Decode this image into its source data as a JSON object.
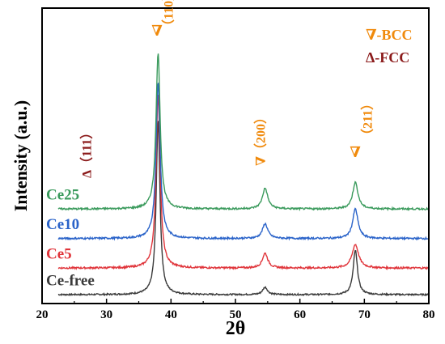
{
  "chart_data": {
    "type": "line",
    "title": "",
    "xlabel": "2θ",
    "ylabel": "Intensity (a.u.)",
    "xlim": [
      20,
      80
    ],
    "xticks": [
      20,
      30,
      40,
      50,
      60,
      70,
      80
    ],
    "ylim": [
      0,
      100
    ],
    "yticks_shown": false,
    "grid": false,
    "legend": {
      "placement": "top-right",
      "entries": [
        {
          "label": "∇-BCC",
          "color": "#f08a0c"
        },
        {
          "label": "Δ-FCC",
          "color": "#8b1a1a"
        }
      ]
    },
    "series": [
      {
        "name": "Ce-free",
        "color": "#3a3a3a",
        "baseline": 3,
        "noise": 0.25,
        "peaks": [
          {
            "x": 38.0,
            "height": 59,
            "width": 0.35
          },
          {
            "x": 54.6,
            "height": 2.5,
            "width": 0.45
          },
          {
            "x": 68.6,
            "height": 15,
            "width": 0.4
          }
        ]
      },
      {
        "name": "Ce5",
        "color": "#e0353b",
        "baseline": 12,
        "noise": 0.3,
        "peaks": [
          {
            "x": 38.0,
            "height": 59,
            "width": 0.38
          },
          {
            "x": 54.6,
            "height": 5,
            "width": 0.5
          },
          {
            "x": 68.6,
            "height": 8,
            "width": 0.6
          }
        ]
      },
      {
        "name": "Ce10",
        "color": "#2a63c9",
        "baseline": 22,
        "noise": 0.3,
        "peaks": [
          {
            "x": 38.0,
            "height": 53,
            "width": 0.38
          },
          {
            "x": 54.6,
            "height": 5,
            "width": 0.5
          },
          {
            "x": 68.6,
            "height": 10,
            "width": 0.5
          }
        ]
      },
      {
        "name": "Ce25",
        "color": "#3a9a5c",
        "baseline": 32,
        "noise": 0.3,
        "peaks": [
          {
            "x": 38.0,
            "height": 53,
            "width": 0.38
          },
          {
            "x": 54.6,
            "height": 7,
            "width": 0.5
          },
          {
            "x": 68.6,
            "height": 9,
            "width": 0.5
          }
        ]
      }
    ],
    "annotations": [
      {
        "text": "∇",
        "x": 38.0,
        "color": "#f08a0c"
      },
      {
        "text": "（110）",
        "x": 40.5,
        "color": "#f08a0c",
        "vertical": true
      },
      {
        "text": "∇（200）",
        "x": 54.6,
        "color": "#f08a0c",
        "vertical": true
      },
      {
        "text": "∇",
        "x": 68.6,
        "color": "#f08a0c"
      },
      {
        "text": "（211）",
        "x": 71.0,
        "color": "#f08a0c",
        "vertical": true
      },
      {
        "text": "Δ（111）",
        "x": 27.8,
        "color": "#8b1a1a",
        "vertical": true
      }
    ]
  }
}
